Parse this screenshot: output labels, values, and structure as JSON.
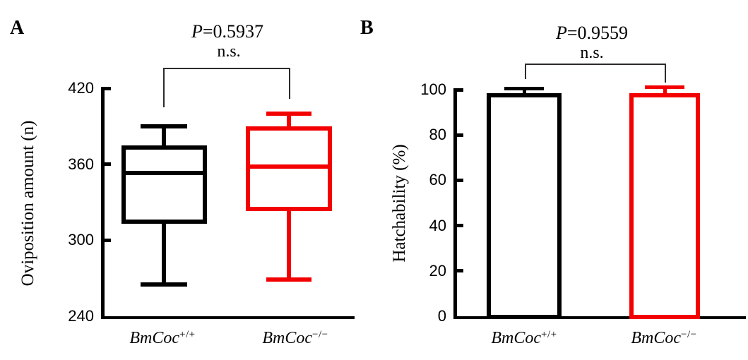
{
  "figure_type": "two-panel scientific figure (box plot + bar chart)",
  "colors": {
    "black_series": "#000000",
    "red_series": "#f30000",
    "bracket": "#2e2a2b"
  },
  "panels": [
    {
      "label": "A",
      "p_symbol": "P",
      "p_rest": "=0.5937",
      "ns": "n.s.",
      "y_title": "Oviposition amount (n)",
      "x_labels": [
        {
          "base": "BmCoc",
          "sup": "+/+"
        },
        {
          "base": "BmCoc",
          "sup": "−/−"
        }
      ]
    },
    {
      "label": "B",
      "p_symbol": "P",
      "p_rest": "=0.9559",
      "ns": "n.s.",
      "y_title": "Hatchability (%)",
      "x_labels": [
        {
          "base": "BmCoc",
          "sup": "+/+"
        },
        {
          "base": "BmCoc",
          "sup": "−/−"
        }
      ]
    }
  ],
  "chart_data": [
    {
      "type": "box",
      "panel": "A",
      "title": "",
      "xlabel": "",
      "ylabel": "Oviposition amount (n)",
      "ylim": [
        240,
        420
      ],
      "yticks": [
        420,
        360,
        300,
        240
      ],
      "grid": false,
      "categories": [
        "BmCoc+/+",
        "BmCoc−/−"
      ],
      "series": [
        {
          "name": "BmCoc+/+",
          "color": "#000000",
          "min": 265,
          "q1": 313,
          "median": 353,
          "q3": 375,
          "max": 390
        },
        {
          "name": "BmCoc−/−",
          "color": "#f30000",
          "min": 269,
          "q1": 323,
          "median": 358,
          "q3": 390,
          "max": 400
        }
      ],
      "annotation": {
        "p": "P=0.5937",
        "sig": "n.s."
      }
    },
    {
      "type": "bar",
      "panel": "B",
      "title": "",
      "xlabel": "",
      "ylabel": "Hatchability (%)",
      "ylim": [
        0,
        100
      ],
      "yticks": [
        100,
        80,
        60,
        40,
        20,
        0
      ],
      "grid": false,
      "categories": [
        "BmCoc+/+",
        "BmCoc−/−"
      ],
      "bar_fill": "white",
      "series": [
        {
          "name": "BmCoc+/+",
          "color": "#000000",
          "value": 98.4,
          "error_up": 2.2
        },
        {
          "name": "BmCoc−/−",
          "color": "#f30000",
          "value": 98.4,
          "error_up": 2.8
        }
      ],
      "annotation": {
        "p": "P=0.9559",
        "sig": "n.s."
      }
    }
  ]
}
